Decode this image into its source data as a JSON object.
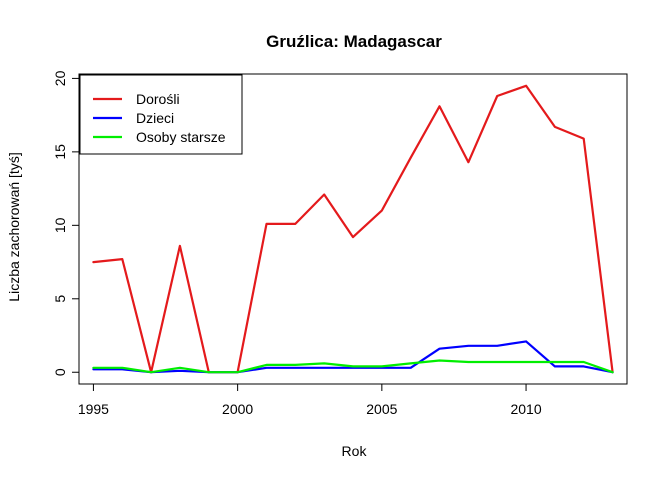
{
  "chart_data": {
    "type": "line",
    "title": "Gruźlica: Madagascar",
    "xlabel": "Rok",
    "ylabel": "Liczba zachorowań [tyś]",
    "xlim": [
      1994.5,
      2013.5
    ],
    "ylim": [
      -0.8,
      20.3
    ],
    "xticks": [
      1995,
      2000,
      2005,
      2010
    ],
    "yticks": [
      0,
      5,
      10,
      15,
      20
    ],
    "legend_position": "top-left",
    "grid": false,
    "x": [
      1995,
      1996,
      1997,
      1998,
      1999,
      2000,
      2001,
      2002,
      2003,
      2004,
      2005,
      2006,
      2007,
      2008,
      2009,
      2010,
      2011,
      2012,
      2013
    ],
    "series": [
      {
        "name": "Dorośli",
        "color": "#e41a1c",
        "values": [
          7.5,
          7.7,
          0.0,
          8.6,
          0.0,
          0.0,
          10.1,
          10.1,
          12.1,
          9.2,
          11.0,
          14.6,
          18.1,
          14.3,
          18.8,
          19.5,
          16.7,
          15.9,
          0.0
        ]
      },
      {
        "name": "Dzieci",
        "color": "#0000ff",
        "values": [
          0.2,
          0.2,
          0.0,
          0.1,
          0.0,
          0.0,
          0.3,
          0.3,
          0.3,
          0.3,
          0.3,
          0.3,
          1.6,
          1.8,
          1.8,
          2.1,
          0.4,
          0.4,
          0.0
        ]
      },
      {
        "name": "Osoby starsze",
        "color": "#00ee00",
        "values": [
          0.3,
          0.3,
          0.0,
          0.3,
          0.0,
          0.0,
          0.5,
          0.5,
          0.6,
          0.4,
          0.4,
          0.6,
          0.8,
          0.7,
          0.7,
          0.7,
          0.7,
          0.7,
          0.0
        ]
      }
    ]
  }
}
